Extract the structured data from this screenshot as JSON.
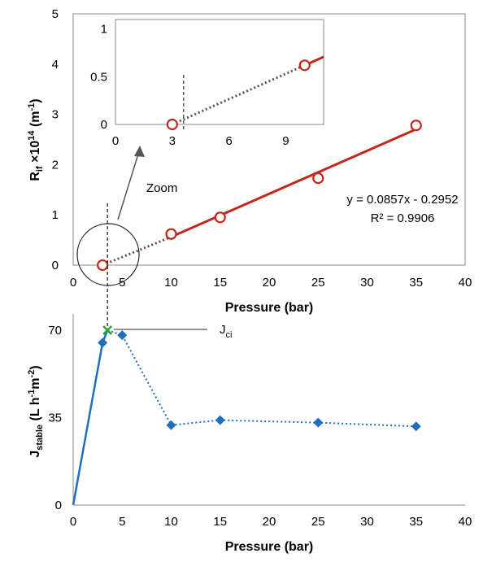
{
  "chart_data": [
    {
      "type": "scatter",
      "xlabel": "Pressure (bar)",
      "ylabel": {
        "main": "R",
        "sub": "if",
        "mid": " ×10",
        "sup1": "14",
        "unit": " (m",
        "sup2": "-1",
        "end": ")"
      },
      "xlim": [
        0,
        40
      ],
      "ylim": [
        0,
        5
      ],
      "xticks": [
        "0",
        "5",
        "10",
        "15",
        "20",
        "25",
        "30",
        "35",
        "40"
      ],
      "yticks": [
        "0",
        "1",
        "2",
        "3",
        "4",
        "5"
      ],
      "series": [
        {
          "x": [
            3,
            10,
            15,
            25,
            35
          ],
          "y": [
            0.0,
            0.62,
            0.95,
            1.73,
            2.78
          ]
        }
      ],
      "trendline": {
        "slope": 0.0857,
        "intercept": -0.2952,
        "x_start": 10,
        "x_end": 35,
        "extrapolated_from": 3
      },
      "annotations": {
        "equation": "y = 0.0857x - 0.2952",
        "r2": "R² = 0.9906",
        "zoom": "Zoom"
      },
      "inset": {
        "xlim": [
          0,
          11
        ],
        "ylim": [
          0,
          1.1
        ],
        "xticks": [
          "0",
          "3",
          "6",
          "9"
        ],
        "yticks": [
          "0",
          "0.5",
          "1"
        ],
        "x": [
          3,
          10
        ],
        "y": [
          0.0,
          0.62
        ],
        "intercept_x": 3.6
      }
    },
    {
      "type": "line",
      "xlabel": "Pressure (bar)",
      "ylabel": {
        "main": "J",
        "sub": "stable",
        "unit": " (L h",
        "sup1": "-1",
        "mid": "m",
        "sup2": "-2",
        "end": ")"
      },
      "xlim": [
        0,
        40
      ],
      "ylim": [
        0,
        70
      ],
      "xticks": [
        "0",
        "5",
        "10",
        "15",
        "20",
        "25",
        "30",
        "35",
        "40"
      ],
      "yticks": [
        "0",
        "35",
        "70"
      ],
      "series": [
        {
          "x": [
            3,
            5,
            10,
            15,
            25,
            35
          ],
          "y": [
            65,
            68,
            32,
            34,
            33,
            31.5
          ]
        }
      ],
      "critical_point": {
        "x": 3.5,
        "y": 70,
        "label_main": "J",
        "label_sub": "ci"
      }
    }
  ],
  "colors": {
    "red": "#c0281c",
    "blue": "#1f6fbf",
    "green": "#2aa32a",
    "grey": "#555555"
  }
}
